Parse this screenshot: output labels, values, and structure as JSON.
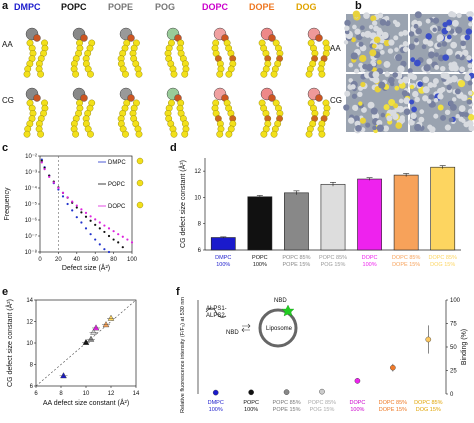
{
  "panels": {
    "a": {
      "label": "a",
      "headers": [
        {
          "text": "DMPC",
          "color": "#1a1acc"
        },
        {
          "text": "POPC",
          "color": "#111111"
        },
        {
          "text": "POPE",
          "color": "#777777"
        },
        {
          "text": "POG",
          "color": "#777777"
        },
        {
          "text": "DOPC",
          "color": "#cc00cc"
        },
        {
          "text": "DOPE",
          "color": "#ee7722"
        },
        {
          "text": "DOG",
          "color": "#e0a300"
        }
      ],
      "rows": [
        "AA",
        "CG"
      ]
    },
    "b": {
      "label": "b",
      "rows": [
        "AA",
        "CG"
      ]
    },
    "c": {
      "label": "c",
      "ylabel": "Frequency",
      "xlabel": "Defect size (Å²)",
      "yticks": [
        "10⁻²",
        "10⁻³",
        "10⁻⁴",
        "10⁻⁵",
        "10⁻⁶",
        "10⁻⁷",
        "10⁻⁸"
      ],
      "xticks": [
        "0",
        "20",
        "40",
        "60",
        "80",
        "100"
      ],
      "legend": [
        "DMPC",
        "POPC",
        "DOPC"
      ]
    },
    "d": {
      "label": "d"
    },
    "e": {
      "label": "e"
    },
    "f": {
      "label": "f",
      "inset_labels": {
        "nbd_top": "NBD",
        "protein": "ALPS1-\nALPS2",
        "nbd": "NBD",
        "liposome": "Liposome"
      },
      "ylabel_left": "Relative fluorescence intensity (F/F₀) at 530 nm",
      "ylabel_right": "Binding (%)",
      "right_yticks": [
        "0",
        "25",
        "50",
        "75",
        "100"
      ],
      "categories": [
        {
          "l1": "DMPC",
          "l2": "100%",
          "color": "#1a1acc"
        },
        {
          "l1": "POPC",
          "l2": "100%",
          "color": "#111111"
        },
        {
          "l1": "POPC 85%",
          "l2": "POPE 15%",
          "color": "#777777"
        },
        {
          "l1": "POPC 85%",
          "l2": "POG 15%",
          "color": "#aaaaaa"
        },
        {
          "l1": "DOPC",
          "l2": "100%",
          "color": "#cc00cc"
        },
        {
          "l1": "DOPC 85%",
          "l2": "DOPE 15%",
          "color": "#ee7722"
        },
        {
          "l1": "DOPC 85%",
          "l2": "DOG 15%",
          "color": "#e0a300"
        }
      ]
    }
  },
  "chart_data": [
    {
      "panel": "c",
      "type": "scatter",
      "xlabel": "Defect size (Å²)",
      "ylabel": "Frequency",
      "xlim": [
        0,
        100
      ],
      "log_y": true,
      "ylim": [
        1e-08,
        0.01
      ],
      "reference_line_x": 20,
      "series": [
        {
          "name": "DMPC",
          "color": "#2233cc",
          "x": [
            2,
            5,
            10,
            15,
            20,
            25,
            30,
            35,
            40,
            45,
            50,
            55,
            60,
            65,
            70,
            75
          ],
          "y": [
            0.006,
            0.002,
            0.0006,
            0.0002,
            8e-05,
            3e-05,
            1e-05,
            4e-06,
            1.5e-06,
            7e-07,
            3e-07,
            1.3e-07,
            6e-08,
            3e-08,
            1.5e-08,
            1e-08
          ]
        },
        {
          "name": "POPC",
          "color": "#111111",
          "x": [
            2,
            5,
            10,
            15,
            20,
            25,
            30,
            35,
            40,
            45,
            50,
            55,
            60,
            65,
            70,
            75,
            80,
            85,
            90
          ],
          "y": [
            0.005,
            0.0018,
            0.0006,
            0.00025,
            0.00011,
            5e-05,
            2.5e-05,
            1.2e-05,
            6e-06,
            3e-06,
            1.6e-06,
            9e-07,
            5e-07,
            3e-07,
            1.8e-07,
            1e-07,
            6e-08,
            4e-08,
            2e-08
          ]
        },
        {
          "name": "DOPC",
          "color": "#dd22dd",
          "x": [
            2,
            5,
            10,
            15,
            20,
            25,
            30,
            35,
            40,
            45,
            50,
            55,
            60,
            65,
            70,
            75,
            80,
            85,
            90,
            95,
            100
          ],
          "y": [
            0.004,
            0.0015,
            0.0005,
            0.00022,
            0.0001,
            5e-05,
            2.6e-05,
            1.4e-05,
            8e-06,
            4.6e-06,
            2.8e-06,
            1.7e-06,
            1.1e-06,
            7e-07,
            4.5e-07,
            3e-07,
            2e-07,
            1.3e-07,
            9e-08,
            6e-08,
            4e-08
          ]
        }
      ]
    },
    {
      "panel": "d",
      "type": "bar",
      "ylabel": "CG defect size constant (Å²)",
      "ylim": [
        6,
        13
      ],
      "yticks": [
        6,
        8,
        10,
        12
      ],
      "categories": [
        {
          "l1": "DMPC",
          "l2": "100%",
          "color": "#1a1acc"
        },
        {
          "l1": "POPC",
          "l2": "100%",
          "color": "#111111"
        },
        {
          "l1": "POPC 85%",
          "l2": "POPE 15%",
          "color": "#888888"
        },
        {
          "l1": "POPC 85%",
          "l2": "POG 15%",
          "color": "#dddddd"
        },
        {
          "l1": "DOPC",
          "l2": "100%",
          "color": "#ee22ee"
        },
        {
          "l1": "DOPC 85%",
          "l2": "DOPE 15%",
          "color": "#f7a25a"
        },
        {
          "l1": "DOPC 85%",
          "l2": "DOG 15%",
          "color": "#fdd560"
        }
      ],
      "values": [
        6.95,
        10.05,
        10.35,
        11.0,
        11.4,
        11.7,
        12.3
      ],
      "errors": [
        0.05,
        0.1,
        0.15,
        0.15,
        0.1,
        0.12,
        0.12
      ]
    },
    {
      "panel": "e",
      "type": "scatter",
      "xlabel": "AA defect size constant (Å²)",
      "ylabel": "CG defect size constant (Å²)",
      "xlim": [
        6,
        14
      ],
      "ylim": [
        6,
        14
      ],
      "xticks": [
        6,
        8,
        10,
        12,
        14
      ],
      "yticks": [
        6,
        8,
        10,
        12,
        14
      ],
      "points": [
        {
          "x": 8.2,
          "y": 6.95,
          "color": "#1a1acc"
        },
        {
          "x": 10.0,
          "y": 10.05,
          "color": "#111111"
        },
        {
          "x": 10.4,
          "y": 10.35,
          "color": "#888888"
        },
        {
          "x": 10.6,
          "y": 11.0,
          "color": "#dddddd"
        },
        {
          "x": 10.8,
          "y": 11.4,
          "color": "#ee22ee"
        },
        {
          "x": 11.6,
          "y": 11.7,
          "color": "#f7a25a"
        },
        {
          "x": 12.0,
          "y": 12.3,
          "color": "#fdd560"
        }
      ]
    },
    {
      "panel": "f",
      "type": "scatter",
      "ylabel_right": "Binding (%)",
      "ylim_right": [
        0,
        100
      ],
      "values": [
        1.5,
        1.8,
        2.0,
        2.5,
        14,
        28,
        58
      ],
      "errors": [
        0.5,
        0.5,
        0.5,
        0.6,
        3,
        4,
        15
      ],
      "colors": [
        "#1a1acc",
        "#111111",
        "#888888",
        "#cccccc",
        "#ee22ee",
        "#f07a2a",
        "#fdc860"
      ]
    }
  ]
}
